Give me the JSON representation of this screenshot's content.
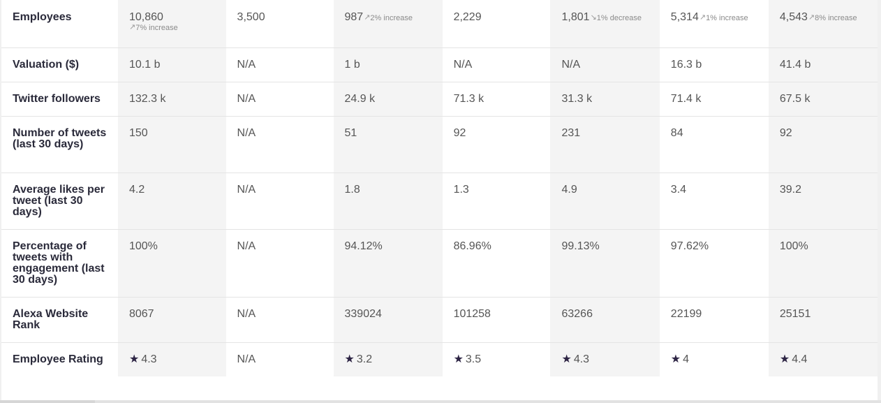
{
  "rows": {
    "employees": {
      "label": "Employees",
      "cells": [
        {
          "value": "10,860",
          "change": "7% increase",
          "trend": "up"
        },
        {
          "value": "3,500"
        },
        {
          "value": "987",
          "change": "2% increase",
          "trend": "up"
        },
        {
          "value": "2,229"
        },
        {
          "value": "1,801",
          "change": "1% decrease",
          "trend": "down"
        },
        {
          "value": "5,314",
          "change": "1% increase",
          "trend": "up"
        },
        {
          "value": "4,543",
          "change": "8% increase",
          "trend": "up"
        }
      ]
    },
    "valuation": {
      "label": "Valuation ($)",
      "cells": [
        "10.1 b",
        "N/A",
        "1 b",
        "N/A",
        "N/A",
        "16.3 b",
        "41.4 b"
      ]
    },
    "twitter_followers": {
      "label": "Twitter followers",
      "cells": [
        "132.3 k",
        "N/A",
        "24.9 k",
        "71.3 k",
        "31.3 k",
        "71.4 k",
        "67.5 k"
      ]
    },
    "tweets": {
      "label": "Number of tweets (last 30 days)",
      "cells": [
        "150",
        "N/A",
        "51",
        "92",
        "231",
        "84",
        "92"
      ]
    },
    "likes": {
      "label": "Average likes per tweet (last 30 days)",
      "cells": [
        "4.2",
        "N/A",
        "1.8",
        "1.3",
        "4.9",
        "3.4",
        "39.2"
      ]
    },
    "engagement": {
      "label": "Percentage of tweets with engagement (last 30 days)",
      "cells": [
        "100%",
        "N/A",
        "94.12%",
        "86.96%",
        "99.13%",
        "97.62%",
        "100%"
      ]
    },
    "alexa": {
      "label": "Alexa Website Rank",
      "cells": [
        "8067",
        "N/A",
        "339024",
        "101258",
        "63266",
        "22199",
        "25151"
      ]
    },
    "rating": {
      "label": "Employee Rating",
      "star_icon": "star-icon",
      "cells": [
        {
          "value": "4.3",
          "star": true
        },
        {
          "value": "N/A",
          "star": false
        },
        {
          "value": "3.2",
          "star": true
        },
        {
          "value": "3.5",
          "star": true
        },
        {
          "value": "4.3",
          "star": true
        },
        {
          "value": "4",
          "star": true
        },
        {
          "value": "4.4",
          "star": true
        }
      ]
    }
  },
  "icons": {
    "trend_up": "trend-up-icon",
    "trend_down": "trend-down-icon",
    "star": "star-icon"
  },
  "colors": {
    "star": "#2d2444",
    "label_text": "#2a2a3a",
    "value_text": "#555555",
    "shaded_column": "#f4f4f4"
  }
}
